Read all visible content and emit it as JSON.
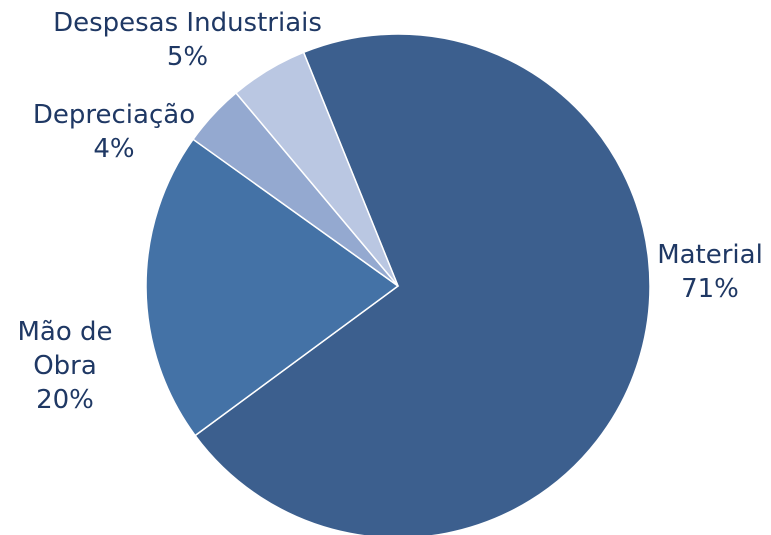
{
  "chart_data": {
    "type": "pie",
    "title": "",
    "slices": [
      {
        "name": "Material",
        "label_lines": [
          "Material"
        ],
        "value": 71,
        "percent_label": "71%",
        "color": "#3c5f8e"
      },
      {
        "name": "Mão de Obra",
        "label_lines": [
          "Mão de",
          "Obra"
        ],
        "value": 20,
        "percent_label": "20%",
        "color": "#4472a6"
      },
      {
        "name": "Depreciação",
        "label_lines": [
          "Depreciação"
        ],
        "value": 4,
        "percent_label": "4%",
        "color": "#94a9d0"
      },
      {
        "name": "Despesas Industriais",
        "label_lines": [
          "Despesas Industriais"
        ],
        "value": 5,
        "percent_label": "5%",
        "color": "#bac7e2"
      }
    ],
    "start_angle_deg": -22,
    "direction": "clockwise",
    "legend": "none",
    "data_labels": "outside"
  }
}
